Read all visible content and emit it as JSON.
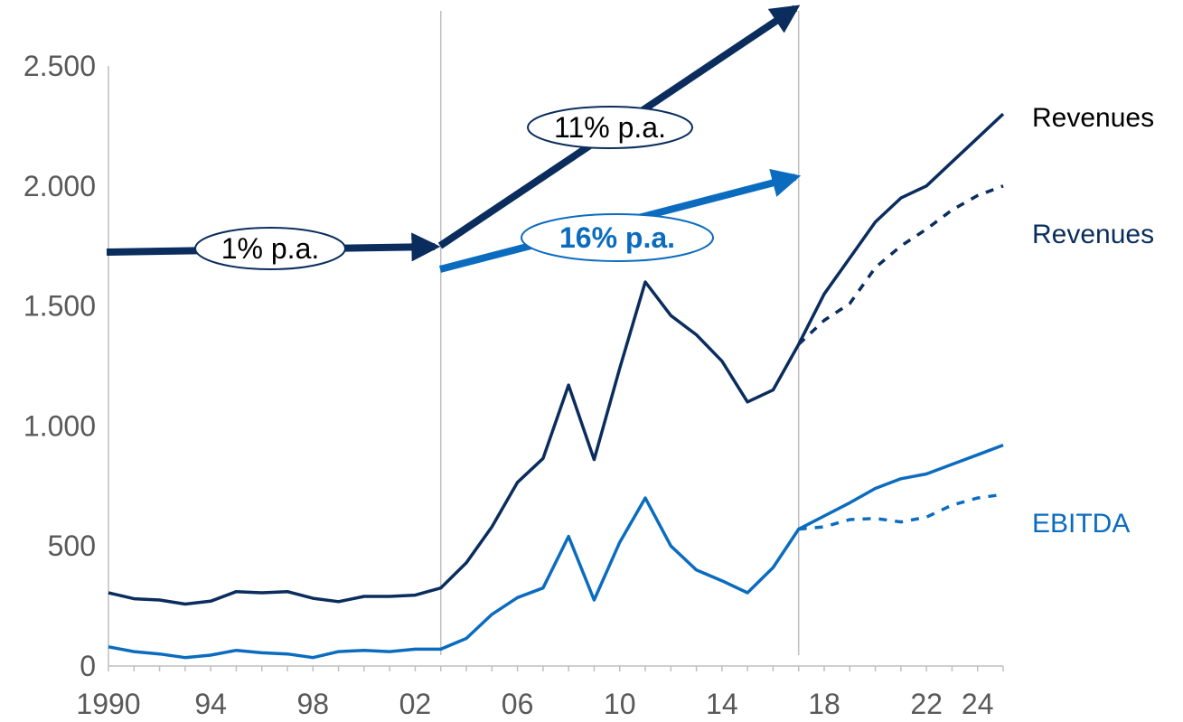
{
  "chart_data": {
    "type": "line",
    "title": "",
    "xlabel": "",
    "ylabel": "",
    "x": [
      1990,
      1991,
      1992,
      1993,
      1994,
      1995,
      1996,
      1997,
      1998,
      1999,
      2000,
      2001,
      2002,
      2003,
      2004,
      2005,
      2006,
      2007,
      2008,
      2009,
      2010,
      2011,
      2012,
      2013,
      2014,
      2015,
      2016,
      2017,
      2018,
      2019,
      2020,
      2021,
      2022,
      2023,
      2024,
      2025
    ],
    "xlim": [
      1990,
      2025
    ],
    "ylim": [
      0,
      2500
    ],
    "x_ticks": [
      {
        "x": 1990,
        "label": "1990"
      },
      {
        "x": 1994,
        "label": "94"
      },
      {
        "x": 1998,
        "label": "98"
      },
      {
        "x": 2002,
        "label": "02"
      },
      {
        "x": 2006,
        "label": "06"
      },
      {
        "x": 2010,
        "label": "10"
      },
      {
        "x": 2014,
        "label": "14"
      },
      {
        "x": 2018,
        "label": "18"
      },
      {
        "x": 2022,
        "label": "22"
      },
      {
        "x": 2024,
        "label": "24"
      }
    ],
    "y_ticks": [
      {
        "y": 0,
        "label": "0"
      },
      {
        "y": 500,
        "label": "500"
      },
      {
        "y": 1000,
        "label": "1.000"
      },
      {
        "y": 1500,
        "label": "1.500"
      },
      {
        "y": 2000,
        "label": "2.000"
      },
      {
        "y": 2500,
        "label": "2.500"
      }
    ],
    "vertical_lines": [
      2003,
      2017
    ],
    "series": [
      {
        "name": "Revenues",
        "color": "#0a2d5e",
        "style": "solid",
        "points": [
          [
            1990,
            305
          ],
          [
            1991,
            280
          ],
          [
            1992,
            275
          ],
          [
            1993,
            258
          ],
          [
            1994,
            270
          ],
          [
            1995,
            310
          ],
          [
            1996,
            305
          ],
          [
            1997,
            310
          ],
          [
            1998,
            282
          ],
          [
            1999,
            268
          ],
          [
            2000,
            290
          ],
          [
            2001,
            290
          ],
          [
            2002,
            295
          ],
          [
            2003,
            325
          ],
          [
            2004,
            430
          ],
          [
            2005,
            580
          ],
          [
            2006,
            765
          ],
          [
            2007,
            865
          ],
          [
            2008,
            1170
          ],
          [
            2009,
            860
          ],
          [
            2010,
            1240
          ],
          [
            2011,
            1600
          ],
          [
            2012,
            1460
          ],
          [
            2013,
            1380
          ],
          [
            2014,
            1270
          ],
          [
            2015,
            1100
          ],
          [
            2016,
            1150
          ],
          [
            2017,
            1340
          ],
          [
            2018,
            1550
          ],
          [
            2019,
            1700
          ],
          [
            2020,
            1850
          ],
          [
            2021,
            1950
          ],
          [
            2022,
            2000
          ],
          [
            2023,
            2100
          ],
          [
            2024,
            2200
          ],
          [
            2025,
            2300
          ]
        ]
      },
      {
        "name": "Revenues",
        "color": "#0a2d5e",
        "style": "dashed",
        "points": [
          [
            2017,
            1340
          ],
          [
            2018,
            1440
          ],
          [
            2019,
            1510
          ],
          [
            2020,
            1660
          ],
          [
            2021,
            1750
          ],
          [
            2022,
            1820
          ],
          [
            2023,
            1900
          ],
          [
            2024,
            1960
          ],
          [
            2025,
            2000
          ]
        ]
      },
      {
        "name": "EBITDA",
        "color": "#0b6cbf",
        "style": "solid",
        "points": [
          [
            1990,
            80
          ],
          [
            1991,
            60
          ],
          [
            1992,
            50
          ],
          [
            1993,
            35
          ],
          [
            1994,
            45
          ],
          [
            1995,
            65
          ],
          [
            1996,
            55
          ],
          [
            1997,
            50
          ],
          [
            1998,
            35
          ],
          [
            1999,
            60
          ],
          [
            2000,
            65
          ],
          [
            2001,
            60
          ],
          [
            2002,
            70
          ],
          [
            2003,
            70
          ],
          [
            2004,
            115
          ],
          [
            2005,
            215
          ],
          [
            2006,
            285
          ],
          [
            2007,
            325
          ],
          [
            2008,
            540
          ],
          [
            2009,
            275
          ],
          [
            2010,
            515
          ],
          [
            2011,
            700
          ],
          [
            2012,
            500
          ],
          [
            2013,
            400
          ],
          [
            2014,
            355
          ],
          [
            2015,
            305
          ],
          [
            2016,
            410
          ],
          [
            2017,
            570
          ],
          [
            2018,
            625
          ],
          [
            2019,
            680
          ],
          [
            2020,
            740
          ],
          [
            2021,
            780
          ],
          [
            2022,
            800
          ],
          [
            2023,
            840
          ],
          [
            2024,
            880
          ],
          [
            2025,
            920
          ]
        ]
      },
      {
        "name": "EBITDA",
        "color": "#0b6cbf",
        "style": "dashed",
        "points": [
          [
            2017,
            570
          ],
          [
            2018,
            580
          ],
          [
            2019,
            610
          ],
          [
            2020,
            615
          ],
          [
            2021,
            600
          ],
          [
            2022,
            620
          ],
          [
            2023,
            670
          ],
          [
            2024,
            700
          ],
          [
            2025,
            715
          ]
        ]
      }
    ],
    "series_labels": [
      {
        "text": "Revenues",
        "color": "#000000"
      },
      {
        "text": "Revenues",
        "color": "#0a2d5e"
      },
      {
        "text": "EBITDA",
        "color": "#0b6cbf"
      }
    ],
    "growth_arrows": [
      {
        "label": "1% p.a.",
        "color": "#0a2d5e",
        "bold": false
      },
      {
        "label": "11% p.a.",
        "color": "#0a2d5e",
        "bold": false
      },
      {
        "label": "16% p.a.",
        "color": "#0b6cbf",
        "bold": true
      }
    ]
  }
}
